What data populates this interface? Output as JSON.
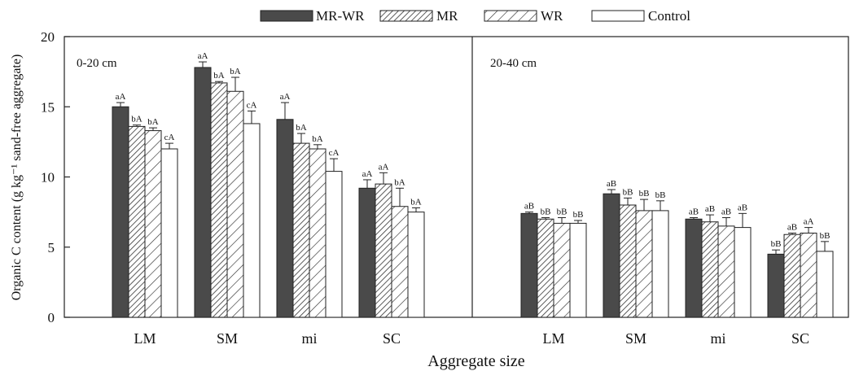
{
  "chart_data": {
    "type": "bar",
    "ylabel": "Organic C content (g kg⁻¹ sand-free aggregate)",
    "xlabel": "Aggregate size",
    "ylim": [
      0,
      20
    ],
    "yticks": [
      0,
      5,
      10,
      15,
      20
    ],
    "grid": false,
    "legend_position": "top",
    "series_styles": [
      {
        "name": "MR-WR",
        "fill": "#4a4a4a",
        "pattern": "solid"
      },
      {
        "name": "MR",
        "fill": "#ffffff",
        "pattern": "dense-hatch"
      },
      {
        "name": "WR",
        "fill": "#ffffff",
        "pattern": "sparse-hatch"
      },
      {
        "name": "Control",
        "fill": "#ffffff",
        "pattern": "none"
      }
    ],
    "panels": [
      {
        "label": "0-20 cm",
        "categories": [
          "LM",
          "SM",
          "mi",
          "SC"
        ],
        "series": [
          {
            "name": "MR-WR",
            "values": [
              15.0,
              17.8,
              14.1,
              9.2
            ],
            "errors": [
              0.3,
              0.4,
              1.2,
              0.6
            ],
            "letters": [
              "aA",
              "aA",
              "aA",
              "aA"
            ]
          },
          {
            "name": "MR",
            "values": [
              13.6,
              16.7,
              12.4,
              9.5
            ],
            "errors": [
              0.1,
              0.1,
              0.7,
              0.8
            ],
            "letters": [
              "bA",
              "bA",
              "bA",
              "aA"
            ]
          },
          {
            "name": "WR",
            "values": [
              13.3,
              16.1,
              12.0,
              7.9
            ],
            "errors": [
              0.2,
              1.0,
              0.3,
              1.3
            ],
            "letters": [
              "bA",
              "bA",
              "bA",
              "bA"
            ]
          },
          {
            "name": "Control",
            "values": [
              12.0,
              13.8,
              10.4,
              7.5
            ],
            "errors": [
              0.4,
              0.9,
              0.9,
              0.3
            ],
            "letters": [
              "cA",
              "cA",
              "cA",
              "bA"
            ]
          }
        ]
      },
      {
        "label": "20-40 cm",
        "categories": [
          "LM",
          "SM",
          "mi",
          "SC"
        ],
        "series": [
          {
            "name": "MR-WR",
            "values": [
              7.4,
              8.8,
              7.0,
              4.5
            ],
            "errors": [
              0.1,
              0.3,
              0.1,
              0.3
            ],
            "letters": [
              "aB",
              "aB",
              "aB",
              "bB"
            ]
          },
          {
            "name": "MR",
            "values": [
              7.0,
              8.0,
              6.8,
              5.9
            ],
            "errors": [
              0.1,
              0.5,
              0.5,
              0.1
            ],
            "letters": [
              "bB",
              "bB",
              "aB",
              "aB"
            ]
          },
          {
            "name": "WR",
            "values": [
              6.7,
              7.6,
              6.5,
              6.0
            ],
            "errors": [
              0.4,
              0.8,
              0.6,
              0.4
            ],
            "letters": [
              "bB",
              "bB",
              "aB",
              "aA"
            ]
          },
          {
            "name": "Control",
            "values": [
              6.7,
              7.6,
              6.4,
              4.7
            ],
            "errors": [
              0.2,
              0.7,
              1.0,
              0.7
            ],
            "letters": [
              "bB",
              "bB",
              "aB",
              "bB"
            ]
          }
        ]
      }
    ]
  }
}
